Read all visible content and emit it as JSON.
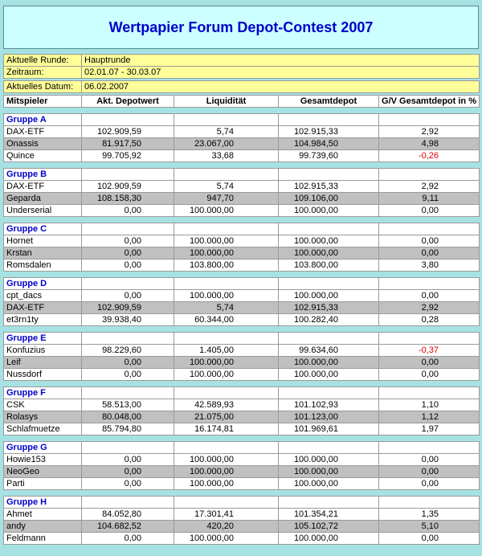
{
  "title": "Wertpapier Forum Depot-Contest 2007",
  "info_rows": [
    {
      "label": "Aktuelle Runde:",
      "value": "Hauptrunde"
    },
    {
      "label": "Zeitraum:",
      "value": "02.01.07 - 30.03.07"
    },
    {
      "label": "Aktuelles Datum:",
      "value": "06.02.2007"
    }
  ],
  "table": {
    "headers": [
      "Mitspieler",
      "Akt. Depotwert",
      "Liquidität",
      "Gesamtdepot",
      "G/V Gesamtdepot in %"
    ],
    "groups": [
      {
        "name": "Gruppe A",
        "rows": [
          {
            "player": "DAX-ETF",
            "akt_depotwert": "102.909,59",
            "liquiditaet": "5,74",
            "gesamtdepot": "102.915,33",
            "gv_prozent": "2,92",
            "negative": false
          },
          {
            "player": "Onassis",
            "akt_depotwert": "81.917,50",
            "liquiditaet": "23.067,00",
            "gesamtdepot": "104.984,50",
            "gv_prozent": "4,98",
            "negative": false
          },
          {
            "player": "Quince",
            "akt_depotwert": "99.705,92",
            "liquiditaet": "33,68",
            "gesamtdepot": "99.739,60",
            "gv_prozent": "-0,26",
            "negative": true
          }
        ]
      },
      {
        "name": "Gruppe B",
        "rows": [
          {
            "player": "DAX-ETF",
            "akt_depotwert": "102.909,59",
            "liquiditaet": "5,74",
            "gesamtdepot": "102.915,33",
            "gv_prozent": "2,92",
            "negative": false
          },
          {
            "player": "Geparda",
            "akt_depotwert": "108.158,30",
            "liquiditaet": "947,70",
            "gesamtdepot": "109.106,00",
            "gv_prozent": "9,11",
            "negative": false
          },
          {
            "player": "Underserial",
            "akt_depotwert": "0,00",
            "liquiditaet": "100.000,00",
            "gesamtdepot": "100.000,00",
            "gv_prozent": "0,00",
            "negative": false
          }
        ]
      },
      {
        "name": "Gruppe C",
        "rows": [
          {
            "player": "Hornet",
            "akt_depotwert": "0,00",
            "liquiditaet": "100.000,00",
            "gesamtdepot": "100.000,00",
            "gv_prozent": "0,00",
            "negative": false
          },
          {
            "player": "Krstan",
            "akt_depotwert": "0,00",
            "liquiditaet": "100.000,00",
            "gesamtdepot": "100.000,00",
            "gv_prozent": "0,00",
            "negative": false
          },
          {
            "player": "Romsdalen",
            "akt_depotwert": "0,00",
            "liquiditaet": "103.800,00",
            "gesamtdepot": "103.800,00",
            "gv_prozent": "3,80",
            "negative": false
          }
        ]
      },
      {
        "name": "Gruppe D",
        "rows": [
          {
            "player": "cpt_dacs",
            "akt_depotwert": "0,00",
            "liquiditaet": "100.000,00",
            "gesamtdepot": "100.000,00",
            "gv_prozent": "0,00",
            "negative": false
          },
          {
            "player": "DAX-ETF",
            "akt_depotwert": "102.909,59",
            "liquiditaet": "5,74",
            "gesamtdepot": "102.915,33",
            "gv_prozent": "2,92",
            "negative": false
          },
          {
            "player": "et3rn1ty",
            "akt_depotwert": "39.938,40",
            "liquiditaet": "60.344,00",
            "gesamtdepot": "100.282,40",
            "gv_prozent": "0,28",
            "negative": false
          }
        ]
      },
      {
        "name": "Gruppe E",
        "rows": [
          {
            "player": "Konfuzius",
            "akt_depotwert": "98.229,60",
            "liquiditaet": "1.405,00",
            "gesamtdepot": "99.634,60",
            "gv_prozent": "-0,37",
            "negative": true
          },
          {
            "player": "Leif",
            "akt_depotwert": "0,00",
            "liquiditaet": "100.000,00",
            "gesamtdepot": "100.000,00",
            "gv_prozent": "0,00",
            "negative": false
          },
          {
            "player": "Nussdorf",
            "akt_depotwert": "0,00",
            "liquiditaet": "100.000,00",
            "gesamtdepot": "100.000,00",
            "gv_prozent": "0,00",
            "negative": false
          }
        ]
      },
      {
        "name": "Gruppe F",
        "rows": [
          {
            "player": "CSK",
            "akt_depotwert": "58.513,00",
            "liquiditaet": "42.589,93",
            "gesamtdepot": "101.102,93",
            "gv_prozent": "1,10",
            "negative": false
          },
          {
            "player": "Rolasys",
            "akt_depotwert": "80.048,00",
            "liquiditaet": "21.075,00",
            "gesamtdepot": "101.123,00",
            "gv_prozent": "1,12",
            "negative": false
          },
          {
            "player": "Schlafmuetze",
            "akt_depotwert": "85.794,80",
            "liquiditaet": "16.174,81",
            "gesamtdepot": "101.969,61",
            "gv_prozent": "1,97",
            "negative": false
          }
        ]
      },
      {
        "name": "Gruppe G",
        "rows": [
          {
            "player": "Howie153",
            "akt_depotwert": "0,00",
            "liquiditaet": "100.000,00",
            "gesamtdepot": "100.000,00",
            "gv_prozent": "0,00",
            "negative": false
          },
          {
            "player": "NeoGeo",
            "akt_depotwert": "0,00",
            "liquiditaet": "100.000,00",
            "gesamtdepot": "100.000,00",
            "gv_prozent": "0,00",
            "negative": false
          },
          {
            "player": "Parti",
            "akt_depotwert": "0,00",
            "liquiditaet": "100.000,00",
            "gesamtdepot": "100.000,00",
            "gv_prozent": "0,00",
            "negative": false
          }
        ]
      },
      {
        "name": "Gruppe H",
        "rows": [
          {
            "player": "Ahmet",
            "akt_depotwert": "84.052,80",
            "liquiditaet": "17.301,41",
            "gesamtdepot": "101.354,21",
            "gv_prozent": "1,35",
            "negative": false
          },
          {
            "player": "andy",
            "akt_depotwert": "104.682,52",
            "liquiditaet": "420,20",
            "gesamtdepot": "105.102,72",
            "gv_prozent": "5,10",
            "negative": false
          },
          {
            "player": "Feldmann",
            "akt_depotwert": "0,00",
            "liquiditaet": "100.000,00",
            "gesamtdepot": "100.000,00",
            "gv_prozent": "0,00",
            "negative": false
          }
        ]
      }
    ]
  },
  "colors": {
    "page_background": "#a6e2e4",
    "title_background": "#ccffff",
    "title_text": "#0000cc",
    "info_background": "#ffff99",
    "row_alt_background": "#c0c0c0",
    "group_name_text": "#0000cc",
    "negative_text": "#e00000"
  }
}
